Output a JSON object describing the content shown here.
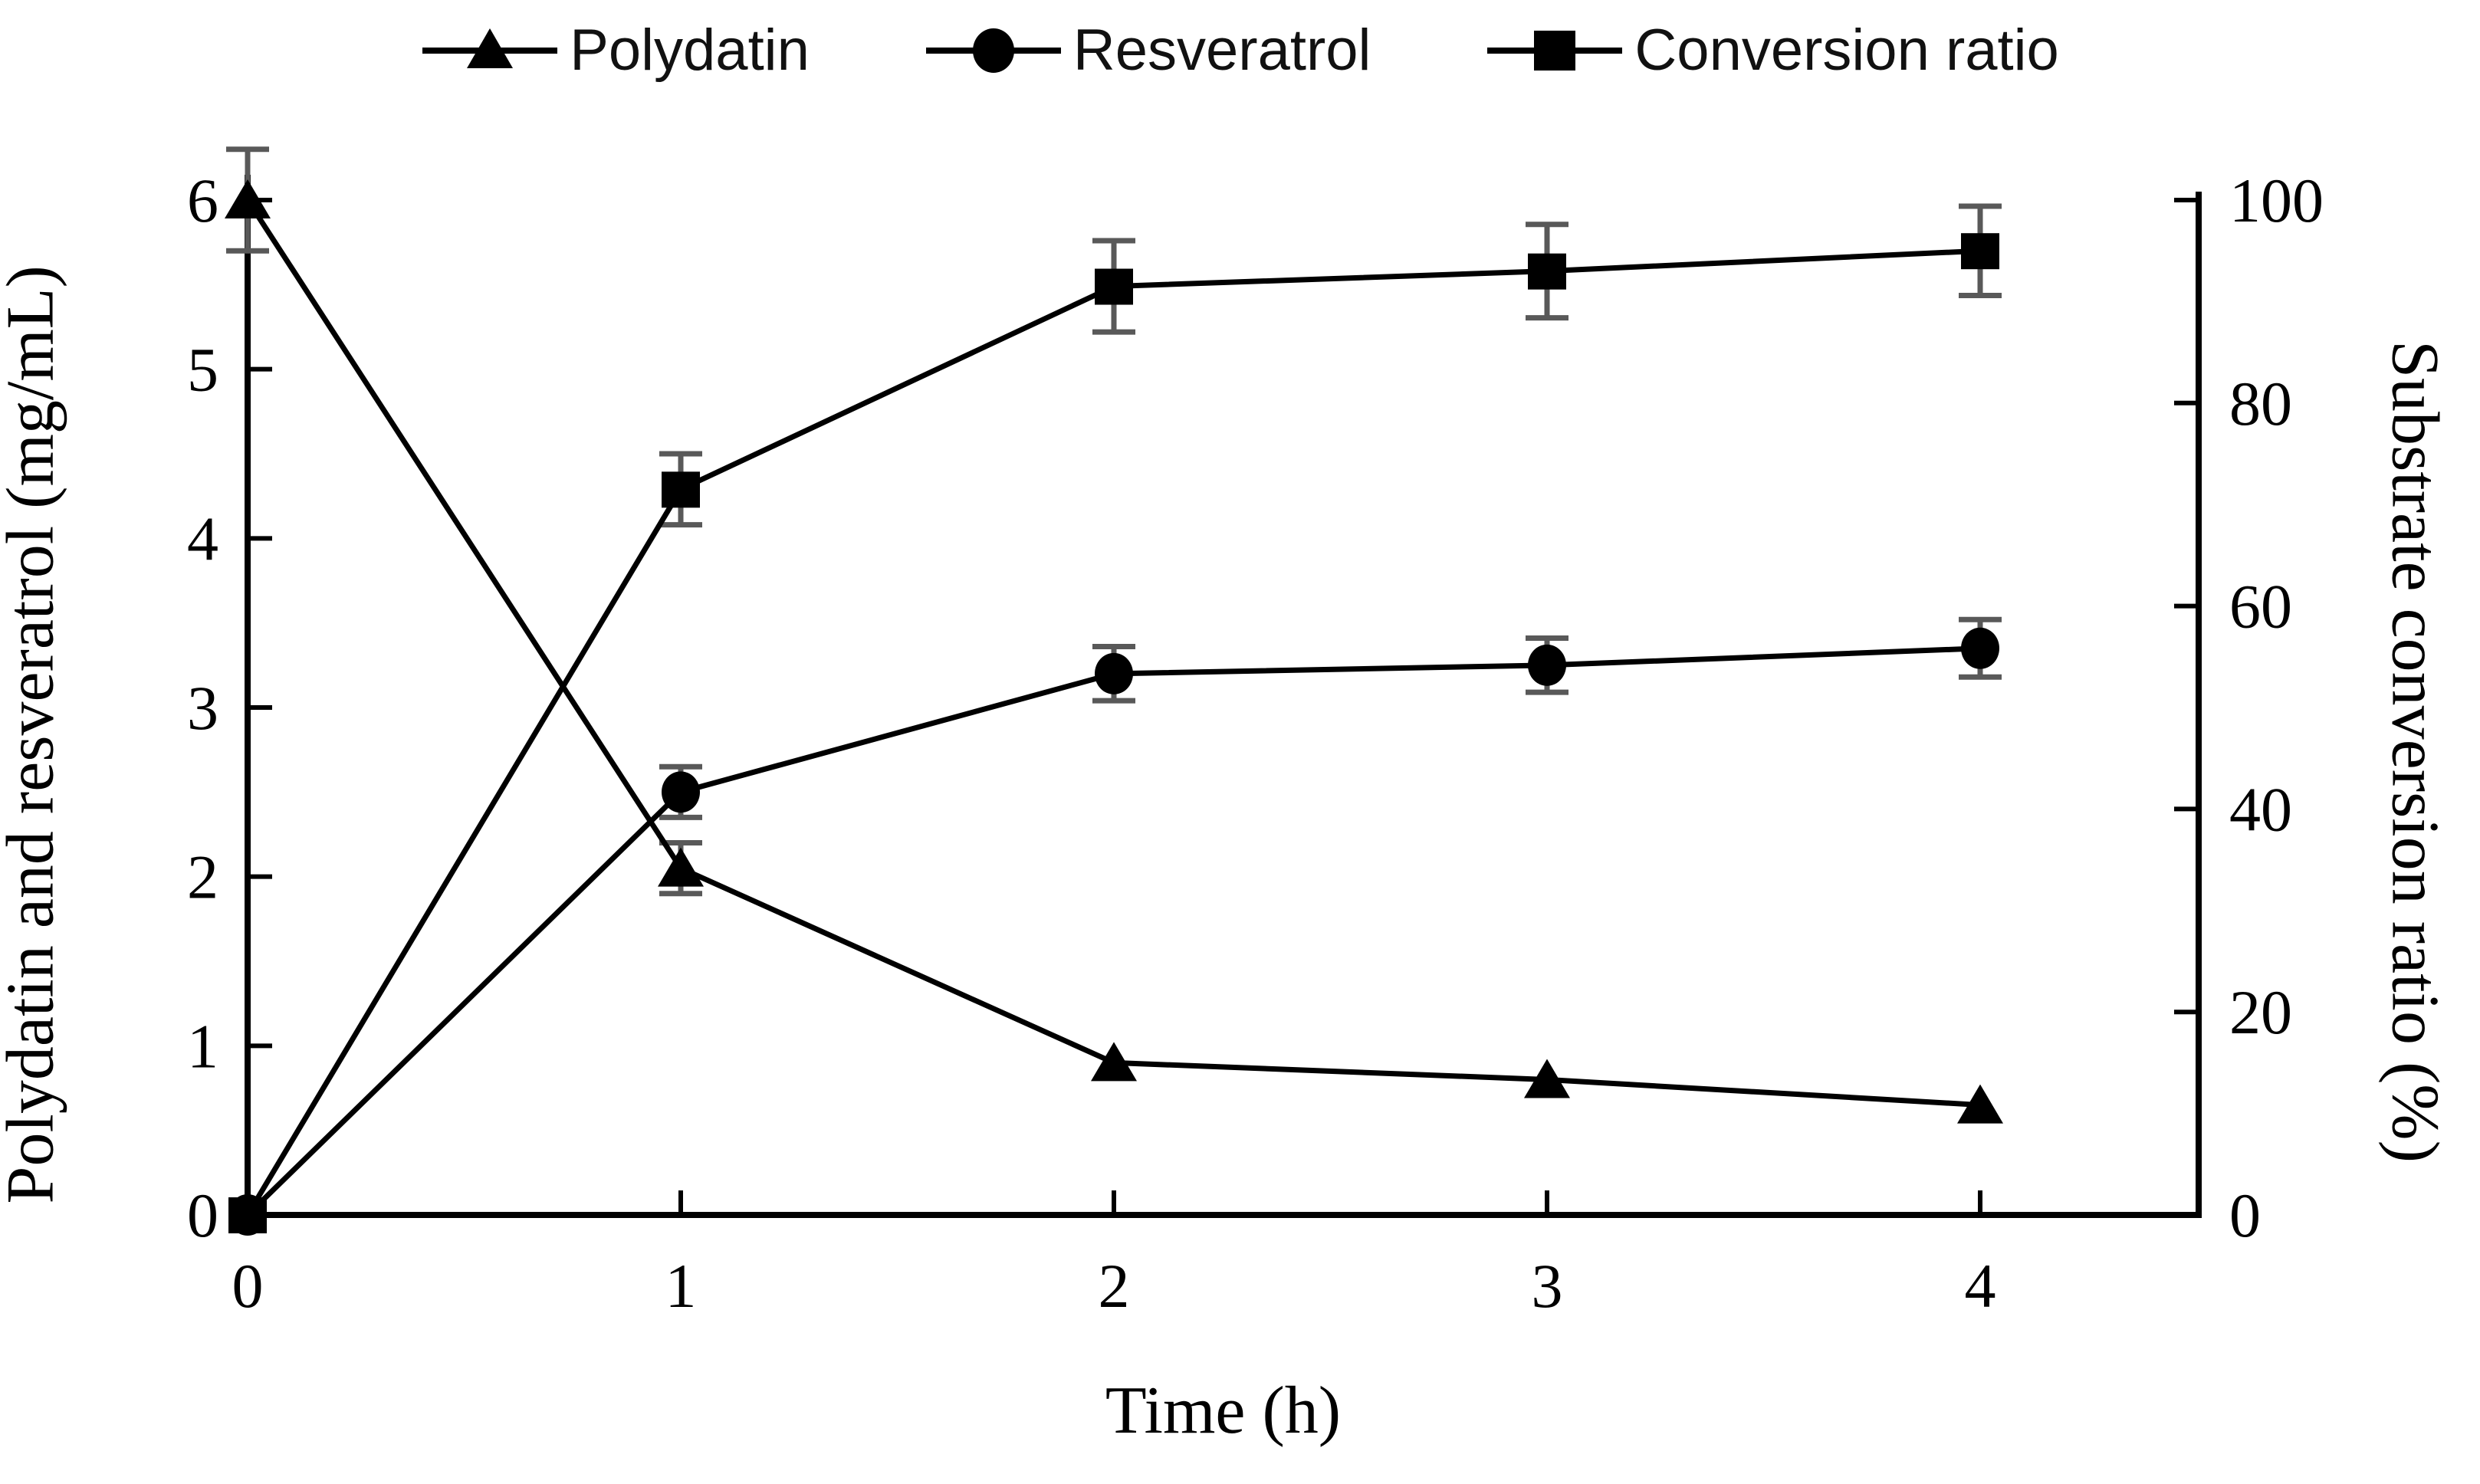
{
  "chart_data": {
    "type": "line",
    "title": "",
    "xlabel": "Time (h)",
    "x": [
      0,
      1,
      2,
      3,
      4
    ],
    "x_ticks": [
      "0",
      "1",
      "2",
      "3",
      "4"
    ],
    "x_range": [
      0,
      4.5
    ],
    "left_axis": {
      "label": "Polydatin and resveratrol (mg/mL)",
      "min": 0,
      "max": 6,
      "ticks": [
        "0",
        "1",
        "2",
        "3",
        "4",
        "5",
        "6"
      ]
    },
    "right_axis": {
      "label": "Substrate conversion ratio (%)",
      "min": 0,
      "max": 100,
      "ticks": [
        "0",
        "20",
        "40",
        "60",
        "80",
        "100"
      ]
    },
    "grid": false,
    "legend_position": "top",
    "colors": {
      "line": "#000000",
      "error_bar": "#595959",
      "background": "#ffffff"
    },
    "series": [
      {
        "name": "Polydatin",
        "axis": "left",
        "marker": "triangle",
        "values": [
          6.0,
          2.05,
          0.9,
          0.8,
          0.65
        ],
        "errors": [
          0.3,
          0.15,
          0,
          0,
          0
        ]
      },
      {
        "name": "Resveratrol",
        "axis": "left",
        "marker": "circle",
        "values": [
          0,
          2.5,
          3.2,
          3.25,
          3.35
        ],
        "errors": [
          0,
          0.15,
          0.16,
          0.16,
          0.17
        ]
      },
      {
        "name": "Conversion ratio",
        "axis": "right",
        "marker": "square",
        "values": [
          0,
          71.5,
          91.5,
          93,
          95
        ],
        "errors": [
          0,
          3.5,
          4.5,
          4.6,
          4.4
        ]
      }
    ]
  }
}
